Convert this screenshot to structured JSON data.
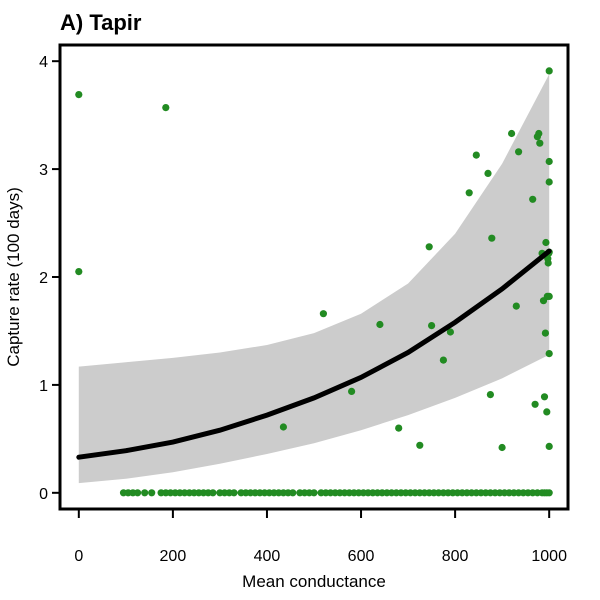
{
  "chart_data": {
    "type": "scatter",
    "title": "A) Tapir",
    "xlabel": "Mean conductance",
    "ylabel": "Capture rate (100 days)",
    "xlim": [
      -40,
      1040
    ],
    "ylim": [
      -0.15,
      4.15
    ],
    "x_ticks": [
      0,
      200,
      400,
      600,
      800,
      1000
    ],
    "y_ticks": [
      0,
      1,
      2,
      3,
      4
    ],
    "grid": false,
    "colors": {
      "points": "#228b22",
      "fit": "#000000",
      "ribbon": "#cccccc",
      "axis": "#000000"
    },
    "points": {
      "x": [
        0,
        0,
        185,
        435,
        520,
        580,
        640,
        680,
        725,
        745,
        750,
        775,
        790,
        830,
        845,
        870,
        875,
        878,
        900,
        920,
        930,
        935,
        965,
        970,
        975,
        978,
        980,
        985,
        988,
        990,
        992,
        993,
        995,
        996,
        997,
        998,
        999,
        1000,
        1000,
        1000,
        1000,
        1000,
        1000,
        1000
      ],
      "y": [
        3.69,
        2.05,
        3.57,
        0.61,
        1.66,
        0.94,
        1.56,
        0.6,
        0.44,
        2.28,
        1.55,
        1.23,
        1.49,
        2.78,
        3.13,
        2.96,
        0.91,
        2.36,
        0.42,
        3.33,
        1.73,
        3.16,
        2.72,
        0.82,
        3.3,
        3.33,
        3.24,
        2.22,
        1.78,
        0.89,
        1.48,
        2.32,
        0.75,
        1.82,
        2.17,
        2.13,
        2.22,
        1.29,
        0.43,
        2.88,
        3.07,
        3.91,
        2.23,
        1.82
      ]
    },
    "zero_points_x": [
      95,
      105,
      115,
      125,
      140,
      155,
      175,
      185,
      195,
      205,
      215,
      225,
      235,
      245,
      255,
      265,
      275,
      285,
      300,
      310,
      320,
      330,
      345,
      355,
      365,
      375,
      385,
      395,
      405,
      415,
      425,
      435,
      445,
      455,
      470,
      480,
      490,
      500,
      515,
      525,
      535,
      545,
      555,
      565,
      575,
      585,
      595,
      605,
      615,
      625,
      635,
      645,
      655,
      665,
      675,
      685,
      695,
      705,
      715,
      725,
      735,
      745,
      755,
      765,
      775,
      785,
      795,
      805,
      815,
      825,
      835,
      845,
      855,
      865,
      875,
      885,
      895,
      905,
      915,
      925,
      935,
      945,
      955,
      965,
      975,
      985,
      990,
      995,
      1000
    ],
    "fit": {
      "x": [
        0,
        100,
        200,
        300,
        400,
        500,
        600,
        700,
        800,
        900,
        1000
      ],
      "y": [
        0.33,
        0.39,
        0.47,
        0.58,
        0.72,
        0.88,
        1.07,
        1.3,
        1.58,
        1.89,
        2.24
      ],
      "lower": [
        0.09,
        0.13,
        0.19,
        0.27,
        0.36,
        0.46,
        0.58,
        0.72,
        0.88,
        1.06,
        1.28
      ],
      "upper": [
        1.17,
        1.21,
        1.25,
        1.3,
        1.37,
        1.48,
        1.66,
        1.94,
        2.4,
        3.05,
        3.88
      ]
    }
  }
}
